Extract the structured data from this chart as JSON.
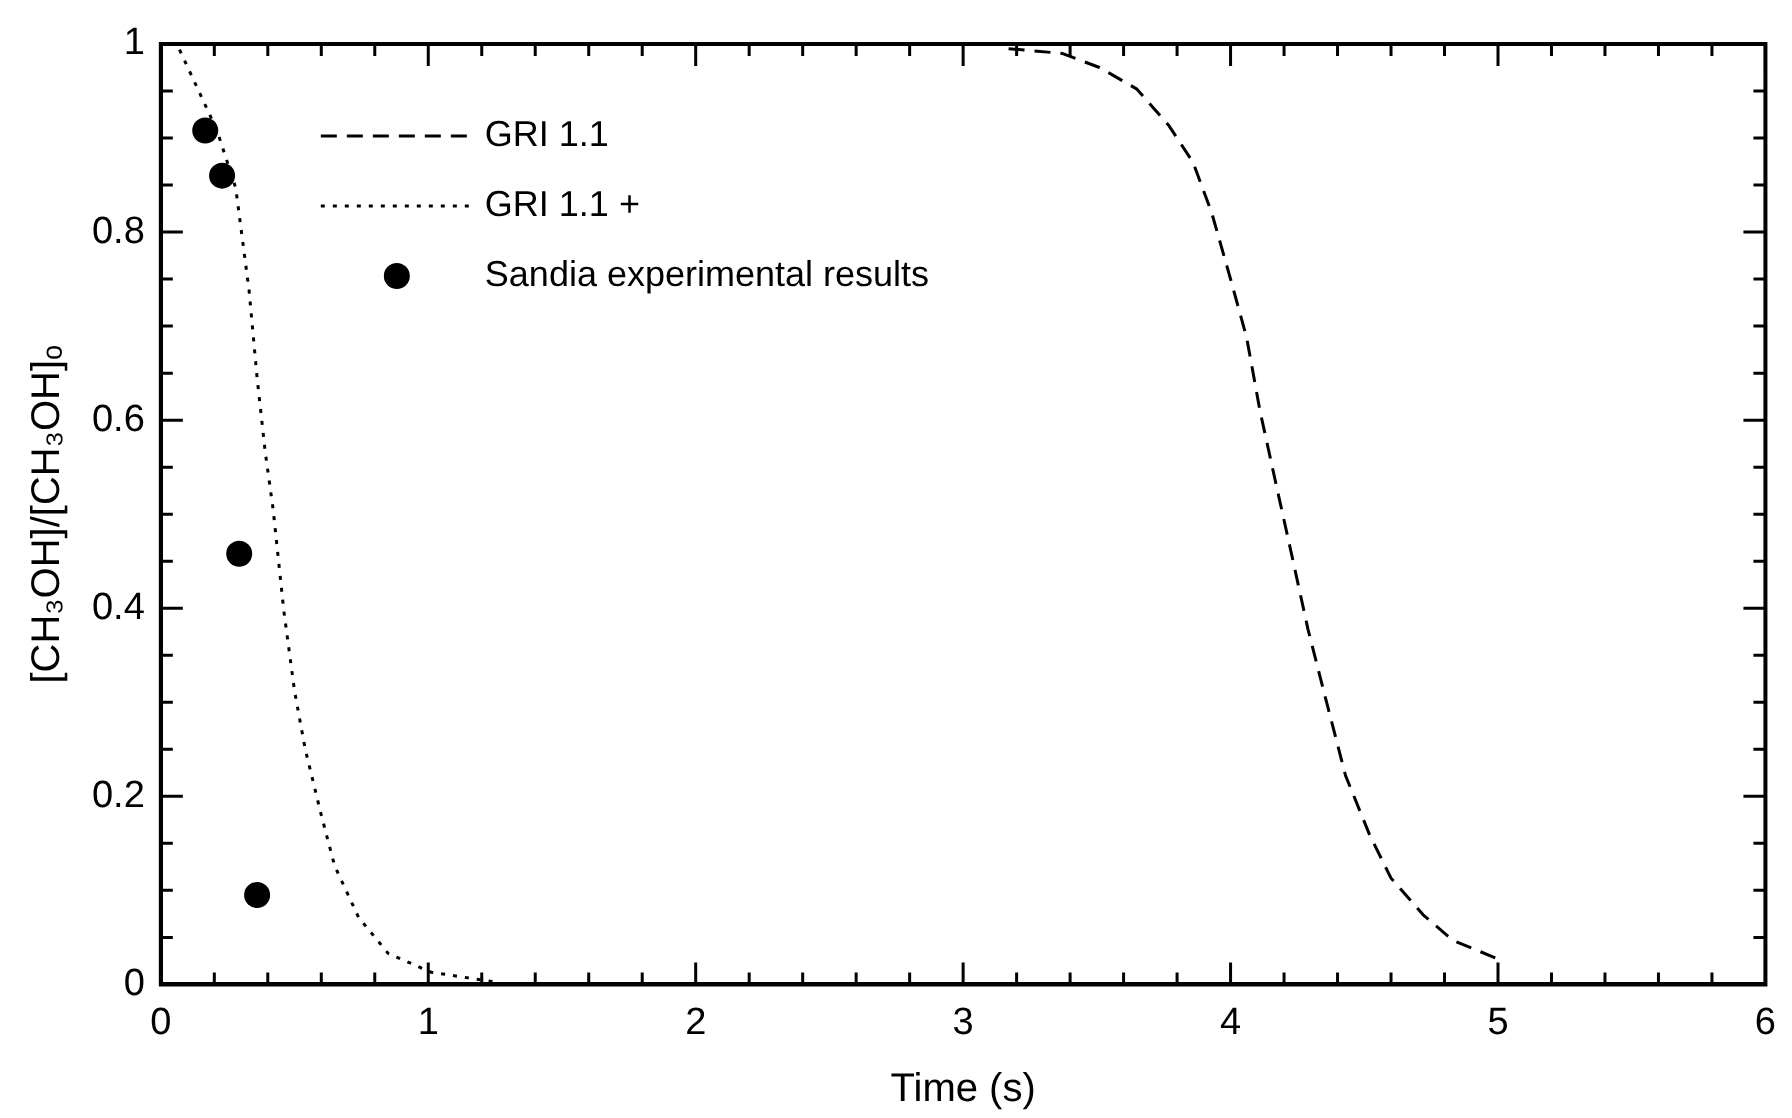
{
  "chart_data": {
    "type": "line",
    "xlabel": "Time (s)",
    "ylabel": "[CH₃OH]/[CH₃OH]ₒ",
    "xlim": [
      0,
      6
    ],
    "ylim": [
      0,
      1
    ],
    "xticks": [
      0,
      {
        "value": 0.2,
        "label": null
      },
      {
        "value": 0.4,
        "label": null
      },
      {
        "value": 0.6,
        "label": null
      },
      {
        "value": 0.8,
        "label": null
      },
      1,
      {
        "value": 1.2,
        "label": null
      },
      {
        "value": 1.4,
        "label": null
      },
      {
        "value": 1.6,
        "label": null
      },
      {
        "value": 1.8,
        "label": null
      },
      2,
      {
        "value": 2.2,
        "label": null
      },
      {
        "value": 2.4,
        "label": null
      },
      {
        "value": 2.6,
        "label": null
      },
      {
        "value": 2.8,
        "label": null
      },
      3,
      {
        "value": 3.2,
        "label": null
      },
      {
        "value": 3.4,
        "label": null
      },
      {
        "value": 3.6,
        "label": null
      },
      {
        "value": 3.8,
        "label": null
      },
      4,
      {
        "value": 4.2,
        "label": null
      },
      {
        "value": 4.4,
        "label": null
      },
      {
        "value": 4.6,
        "label": null
      },
      {
        "value": 4.8,
        "label": null
      },
      5,
      {
        "value": 5.2,
        "label": null
      },
      {
        "value": 5.4,
        "label": null
      },
      {
        "value": 5.6,
        "label": null
      },
      {
        "value": 5.8,
        "label": null
      },
      6
    ],
    "yticks": [
      0,
      {
        "value": 0.05,
        "label": null
      },
      {
        "value": 0.1,
        "label": null
      },
      {
        "value": 0.15,
        "label": null
      },
      0.2,
      {
        "value": 0.25,
        "label": null
      },
      {
        "value": 0.3,
        "label": null
      },
      {
        "value": 0.35,
        "label": null
      },
      0.4,
      {
        "value": 0.45,
        "label": null
      },
      {
        "value": 0.5,
        "label": null
      },
      {
        "value": 0.55,
        "label": null
      },
      0.6,
      {
        "value": 0.65,
        "label": null
      },
      {
        "value": 0.7,
        "label": null
      },
      {
        "value": 0.75,
        "label": null
      },
      0.8,
      {
        "value": 0.85,
        "label": null
      },
      {
        "value": 0.9,
        "label": null
      },
      {
        "value": 0.95,
        "label": null
      },
      1
    ],
    "grid": false,
    "legend": "top left",
    "series": [
      {
        "name": "GRI 1.1",
        "type": "line",
        "line_style": "dashed",
        "color": "#000000",
        "x": [
          3.17,
          3.37,
          3.51,
          3.65,
          3.77,
          3.86,
          3.93,
          4.0,
          4.06,
          4.11,
          4.17,
          4.23,
          4.29,
          4.36,
          4.43,
          4.52,
          4.6,
          4.72,
          4.83,
          5.0
        ],
        "values": [
          0.995,
          0.99,
          0.975,
          0.952,
          0.913,
          0.874,
          0.82,
          0.75,
          0.688,
          0.61,
          0.532,
          0.455,
          0.377,
          0.299,
          0.222,
          0.159,
          0.113,
          0.074,
          0.047,
          0.027
        ]
      },
      {
        "name": "GRI 1.1 +",
        "type": "line",
        "line_style": "dotted",
        "color": "#000000",
        "x": [
          0.07,
          0.21,
          0.28,
          0.33,
          0.36,
          0.39,
          0.42,
          0.46,
          0.5,
          0.54,
          0.6,
          0.65,
          0.74,
          0.85,
          1.01,
          1.24
        ],
        "values": [
          0.994,
          0.908,
          0.847,
          0.738,
          0.645,
          0.567,
          0.505,
          0.397,
          0.312,
          0.25,
          0.18,
          0.126,
          0.071,
          0.033,
          0.013,
          0.003
        ]
      },
      {
        "name": "Sandia experimental results",
        "type": "scatter",
        "marker": "circle",
        "color": "#000000",
        "x": [
          0.166,
          0.229,
          0.293,
          0.36
        ],
        "values": [
          0.908,
          0.86,
          0.458,
          0.095
        ]
      }
    ]
  }
}
